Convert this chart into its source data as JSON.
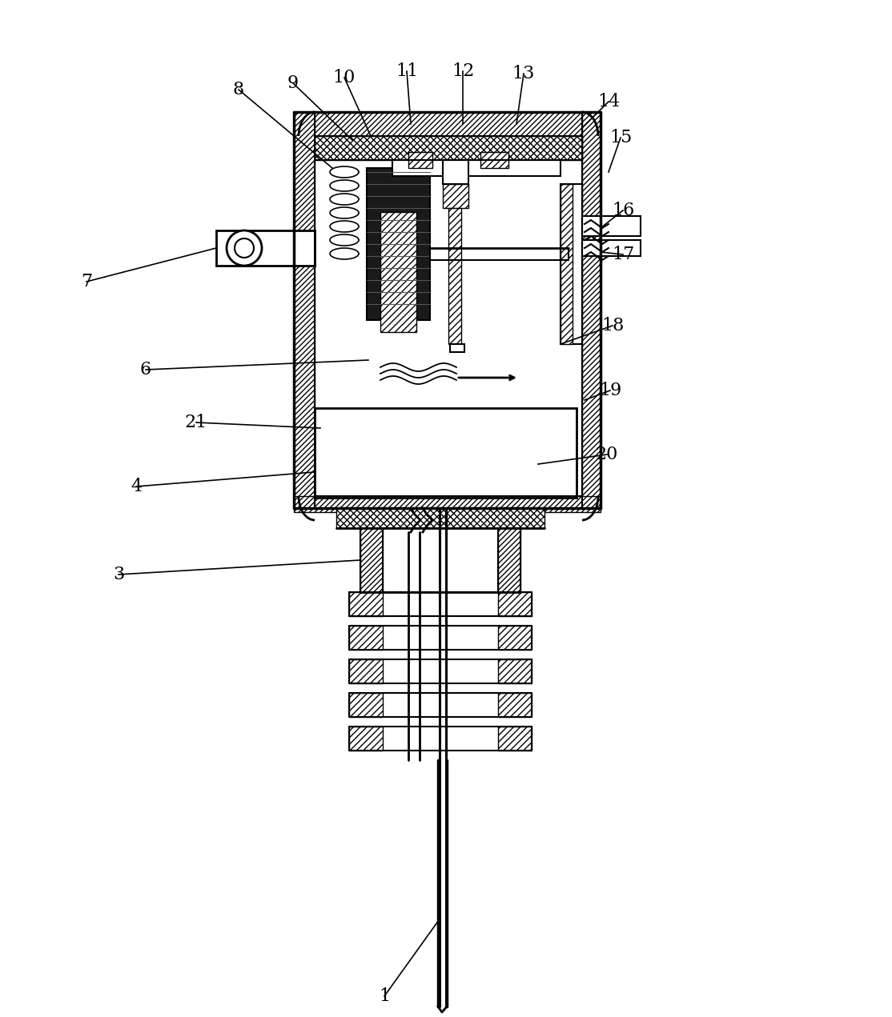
{
  "figsize": [
    11.14,
    12.71
  ],
  "dpi": 100,
  "bg_color": "#ffffff",
  "line_color": "#000000",
  "label_positions": [
    [
      "1",
      480,
      1245,
      548,
      1150
    ],
    [
      "3",
      148,
      718,
      450,
      700
    ],
    [
      "4",
      170,
      608,
      392,
      590
    ],
    [
      "6",
      182,
      462,
      460,
      450
    ],
    [
      "7",
      108,
      352,
      270,
      310
    ],
    [
      "8",
      298,
      112,
      415,
      210
    ],
    [
      "9",
      366,
      104,
      440,
      175
    ],
    [
      "10",
      430,
      97,
      463,
      170
    ],
    [
      "11",
      508,
      89,
      513,
      155
    ],
    [
      "12",
      578,
      89,
      578,
      155
    ],
    [
      "13",
      654,
      92,
      645,
      155
    ],
    [
      "14",
      760,
      127,
      727,
      160
    ],
    [
      "15",
      775,
      172,
      760,
      215
    ],
    [
      "16",
      778,
      263,
      750,
      285
    ],
    [
      "17",
      778,
      318,
      750,
      315
    ],
    [
      "18",
      765,
      407,
      700,
      430
    ],
    [
      "19",
      762,
      488,
      730,
      500
    ],
    [
      "20",
      758,
      568,
      672,
      580
    ],
    [
      "21",
      245,
      528,
      400,
      535
    ]
  ]
}
